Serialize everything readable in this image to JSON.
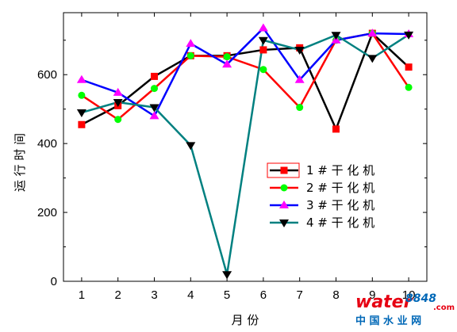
{
  "chart_data": {
    "type": "line",
    "xlabel": "月 份",
    "ylabel": "运 行 时 间",
    "x": [
      1,
      2,
      3,
      4,
      5,
      6,
      7,
      8,
      9,
      10
    ],
    "xlim": [
      0.5,
      10.5
    ],
    "ylim": [
      0,
      780
    ],
    "yticks": [
      0,
      200,
      400,
      600
    ],
    "xticks": [
      1,
      2,
      3,
      4,
      5,
      6,
      7,
      8,
      9,
      10
    ],
    "grid": false,
    "legend_position": "center-right",
    "series": [
      {
        "name": "1 # 干 化 机",
        "color": "#000000",
        "marker": "square",
        "values": [
          455,
          510,
          595,
          655,
          655,
          672,
          678,
          442,
          720,
          622
        ]
      },
      {
        "name": "2 # 干 化 机",
        "color": "#ff0000",
        "marker": "circle",
        "values": [
          540,
          470,
          560,
          655,
          652,
          615,
          505,
          700,
          720,
          563
        ]
      },
      {
        "name": "3 # 干 化 机",
        "color": "#0000ff",
        "marker": "triangle-up",
        "values": [
          585,
          548,
          480,
          690,
          630,
          735,
          585,
          700,
          720,
          718
        ]
      },
      {
        "name": "4 # 干 化 机",
        "color": "#008080",
        "marker": "triangle-down",
        "values": [
          490,
          520,
          505,
          395,
          20,
          700,
          672,
          715,
          648,
          716
        ]
      }
    ],
    "marker_colors": [
      "#ff0000",
      "#00ff00",
      "#ff00ff",
      "#000000"
    ]
  },
  "watermark": {
    "brand_water": "water",
    "brand_num": "8848",
    "brand_com": ".com",
    "subtitle": "中 国 水 业 网",
    "colors": {
      "water": "#e60012",
      "num": "#0068b7",
      "subtitle": "#0068b7"
    }
  }
}
